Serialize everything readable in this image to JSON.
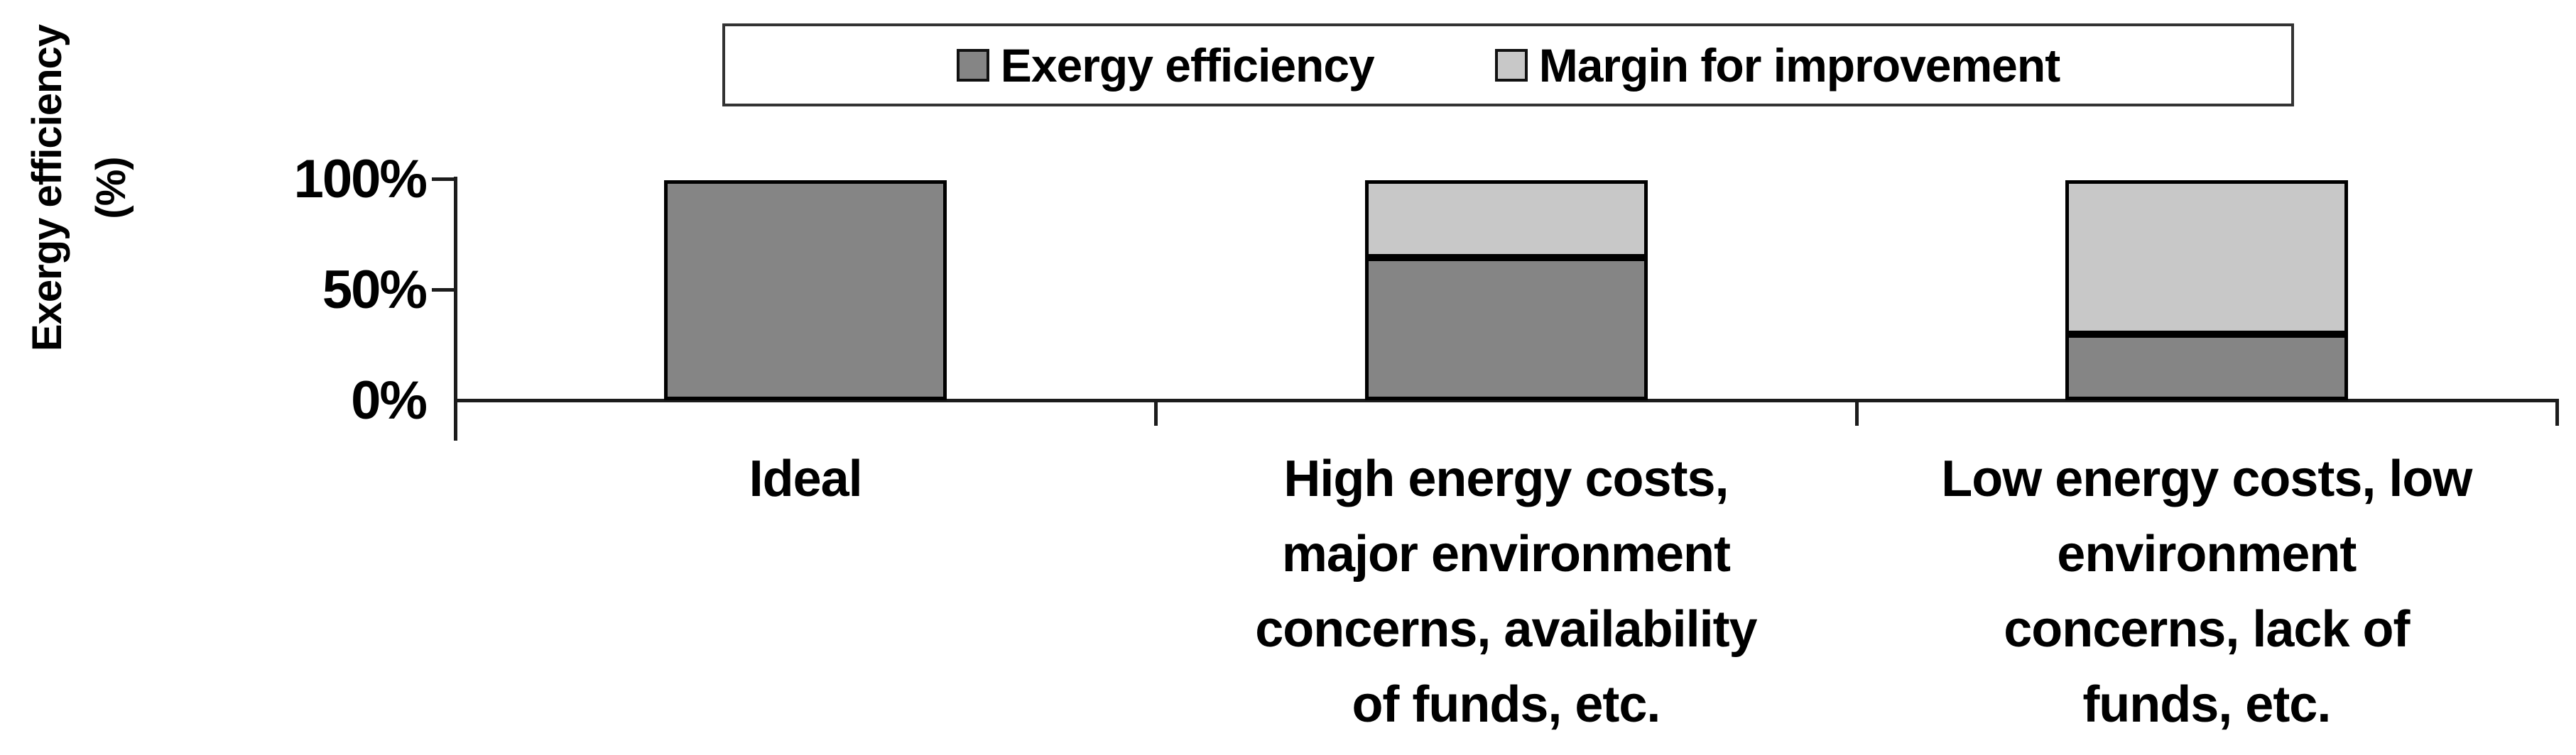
{
  "chart_data": {
    "type": "bar",
    "stacked": true,
    "title": "",
    "xlabel": "",
    "ylabel": "Exergy efficiency (%)",
    "ylabel_lines": [
      "Exergy efficiency",
      "(%)"
    ],
    "ylim": [
      0,
      100
    ],
    "grid": false,
    "legend_position": "top-center-boxed",
    "y_ticks": [
      {
        "label": "100%",
        "value": 100
      },
      {
        "label": "50%",
        "value": 50
      },
      {
        "label": "0%",
        "value": 0
      }
    ],
    "categories": [
      "Ideal",
      "High energy costs, major environment concerns, availability of funds, etc.",
      "Low energy costs, low environment concerns, lack of funds, etc."
    ],
    "categories_lines": [
      [
        "Ideal"
      ],
      [
        "High energy costs,",
        "major environment",
        "concerns, availability",
        "of funds, etc."
      ],
      [
        "Low energy costs, low",
        "environment",
        "concerns, lack of",
        "funds, etc."
      ]
    ],
    "series": [
      {
        "name": "Exergy efficiency",
        "color": "#858585",
        "values": [
          100,
          65,
          30
        ]
      },
      {
        "name": "Margin for improvement",
        "color": "#c8c8c8",
        "values": [
          0,
          35,
          70
        ]
      }
    ],
    "colors": {
      "bar_border": "#000000",
      "axis": "#1c1c1c",
      "legend_border": "#333333",
      "text": "#000000",
      "background": "#ffffff"
    }
  }
}
